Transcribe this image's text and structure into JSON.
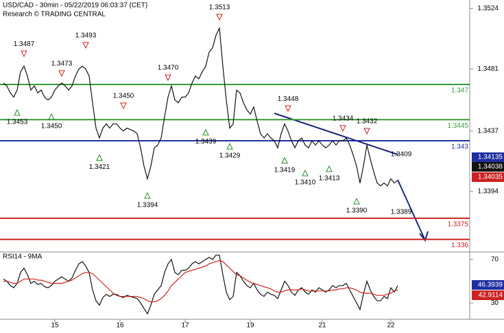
{
  "chart_data": [
    {
      "type": "line",
      "title": "USD/CAD - 30min - 05/22/2019 06:03:37 (CET)",
      "subtitle": "Research © TRADING CENTRAL",
      "xlim": [
        0,
        137
      ],
      "ylim": [
        1.3352,
        1.353
      ],
      "yticks": [
        1.3524,
        1.3481,
        1.3437,
        1.3394
      ],
      "x": [
        1,
        2,
        3,
        4,
        5,
        6,
        7,
        8,
        9,
        10,
        11,
        12,
        13,
        14,
        15,
        16,
        17,
        18,
        19,
        20,
        21,
        22,
        23,
        24,
        25,
        26,
        27,
        28,
        29,
        30,
        31,
        32,
        33,
        34,
        35,
        36,
        37,
        38,
        39,
        40,
        41,
        42,
        43,
        44,
        45,
        46,
        47,
        48,
        49,
        50,
        51,
        52,
        53,
        54,
        55,
        56,
        57,
        58,
        59,
        60,
        61,
        62,
        63,
        64,
        65,
        66,
        67,
        68,
        69,
        70,
        71,
        72,
        73,
        74,
        75,
        76,
        77,
        78,
        79,
        80,
        81,
        82,
        83,
        84,
        85,
        86,
        87,
        88,
        89,
        90,
        91,
        92,
        93,
        94,
        95,
        96,
        97,
        98,
        99,
        100,
        101,
        102,
        103,
        104,
        105,
        106,
        107,
        108,
        109,
        110,
        111,
        112,
        113,
        114,
        115,
        116
      ],
      "series": [
        {
          "name": "USD/CAD",
          "color": "#111111",
          "values": [
            1.3471,
            1.3469,
            1.3464,
            1.3461,
            1.3466,
            1.3479,
            1.3483,
            1.3476,
            1.3466,
            1.3469,
            1.3464,
            1.3466,
            1.3461,
            1.3459,
            1.3461,
            1.3466,
            1.3469,
            1.3471,
            1.3469,
            1.3466,
            1.3469,
            1.3476,
            1.3481,
            1.3483,
            1.3481,
            1.3476,
            1.3457,
            1.3439,
            1.3432,
            1.3439,
            1.3442,
            1.3439,
            1.3442,
            1.3442,
            1.3439,
            1.3437,
            1.3439,
            1.3438,
            1.3437,
            1.3435,
            1.3425,
            1.3412,
            1.3403,
            1.3412,
            1.3425,
            1.3427,
            1.3432,
            1.3447,
            1.3461,
            1.3469,
            1.3459,
            1.3457,
            1.3461,
            1.3461,
            1.3464,
            1.3471,
            1.3476,
            1.3474,
            1.3479,
            1.3483,
            1.3493,
            1.3496,
            1.3505,
            1.351,
            1.3483,
            1.3459,
            1.3439,
            1.3442,
            1.3466,
            1.3464,
            1.3457,
            1.3452,
            1.3449,
            1.3454,
            1.3444,
            1.3435,
            1.3432,
            1.3435,
            1.3432,
            1.343,
            1.3425,
            1.3435,
            1.3442,
            1.3437,
            1.343,
            1.3425,
            1.343,
            1.3432,
            1.3427,
            1.3425,
            1.343,
            1.3427,
            1.343,
            1.3427,
            1.3425,
            1.3427,
            1.343,
            1.3427,
            1.343,
            1.343,
            1.3432,
            1.3427,
            1.342,
            1.3412,
            1.34,
            1.3412,
            1.3427,
            1.3417,
            1.3408,
            1.34,
            1.3398,
            1.34,
            1.3398,
            1.3403,
            1.34,
            1.3402
          ]
        }
      ],
      "levels": [
        {
          "value": 1.347,
          "color": "#3a9a3a"
        },
        {
          "value": 1.3445,
          "color": "#3a9a3a"
        },
        {
          "value": 1.343,
          "color": "#1f2fa0"
        },
        {
          "value": 1.3375,
          "color": "#cc2222"
        },
        {
          "value": 1.336,
          "color": "#cc2222"
        }
      ],
      "highs": [
        {
          "x": 7,
          "value": 1.3487
        },
        {
          "x": 18,
          "value": 1.3473
        },
        {
          "x": 25,
          "value": 1.3493
        },
        {
          "x": 36,
          "value": 1.345,
          "label": "1.3450"
        },
        {
          "x": 49,
          "value": 1.347,
          "label": "1.3470"
        },
        {
          "x": 64,
          "value": 1.3513
        },
        {
          "x": 84,
          "value": 1.3448
        },
        {
          "x": 100,
          "value": 1.3434
        },
        {
          "x": 107,
          "value": 1.3432
        }
      ],
      "lows": [
        {
          "x": 5,
          "value": 1.3453
        },
        {
          "x": 15,
          "value": 1.345,
          "label": "1.3450"
        },
        {
          "x": 29,
          "value": 1.3421
        },
        {
          "x": 43,
          "value": 1.3394
        },
        {
          "x": 60,
          "value": 1.3439
        },
        {
          "x": 67,
          "value": 1.3429
        },
        {
          "x": 83,
          "value": 1.3419
        },
        {
          "x": 89,
          "value": 1.341,
          "label": "1.3410"
        },
        {
          "x": 96,
          "value": 1.3413
        },
        {
          "x": 104,
          "value": 1.339,
          "label": "1.3390"
        }
      ],
      "notes": [
        1.3409,
        1.3389
      ],
      "tags": [
        {
          "value": 1.34135,
          "color": "#1f2fa0"
        },
        {
          "value": 1.34038,
          "color": "#111111"
        },
        {
          "value": 1.34035,
          "color": "#cc2222"
        }
      ]
    },
    {
      "type": "line",
      "title": "RSI14 - 9MA",
      "xlim": [
        0,
        137
      ],
      "ylim": [
        15,
        75
      ],
      "yticks": [
        70,
        30
      ],
      "xticks": [
        {
          "value": 16,
          "label": "15"
        },
        {
          "value": 35,
          "label": "16"
        },
        {
          "value": 54,
          "label": "17"
        },
        {
          "value": 73,
          "label": "19"
        },
        {
          "value": 94,
          "label": "21"
        },
        {
          "value": 114,
          "label": "22"
        }
      ],
      "x": [
        1,
        2,
        3,
        4,
        5,
        6,
        7,
        8,
        9,
        10,
        11,
        12,
        13,
        14,
        15,
        16,
        17,
        18,
        19,
        20,
        21,
        22,
        23,
        24,
        25,
        26,
        27,
        28,
        29,
        30,
        31,
        32,
        33,
        34,
        35,
        36,
        37,
        38,
        39,
        40,
        41,
        42,
        43,
        44,
        45,
        46,
        47,
        48,
        49,
        50,
        51,
        52,
        53,
        54,
        55,
        56,
        57,
        58,
        59,
        60,
        61,
        62,
        63,
        64,
        65,
        66,
        67,
        68,
        69,
        70,
        71,
        72,
        73,
        74,
        75,
        76,
        77,
        78,
        79,
        80,
        81,
        82,
        83,
        84,
        85,
        86,
        87,
        88,
        89,
        90,
        91,
        92,
        93,
        94,
        95,
        96,
        97,
        98,
        99,
        100,
        101,
        102,
        103,
        104,
        105,
        106,
        107,
        108,
        109,
        110,
        111,
        112,
        113,
        114,
        115,
        116
      ],
      "series": [
        {
          "name": "RSI14",
          "color": "#111111",
          "values": [
            52,
            50,
            46,
            44,
            48,
            58,
            62,
            56,
            48,
            50,
            47,
            48,
            45,
            44,
            46,
            50,
            52,
            54,
            52,
            50,
            53,
            60,
            66,
            68,
            64,
            58,
            42,
            32,
            28,
            35,
            38,
            36,
            38,
            38,
            36,
            35,
            37,
            36,
            35,
            34,
            30,
            25,
            20,
            28,
            38,
            42,
            46,
            58,
            66,
            70,
            58,
            56,
            60,
            60,
            62,
            66,
            68,
            66,
            68,
            70,
            72,
            70,
            74,
            74,
            56,
            40,
            33,
            36,
            58,
            55,
            50,
            46,
            44,
            48,
            42,
            38,
            36,
            40,
            38,
            37,
            34,
            42,
            50,
            46,
            40,
            37,
            42,
            44,
            40,
            38,
            42,
            40,
            44,
            42,
            40,
            42,
            46,
            44,
            46,
            46,
            48,
            42,
            36,
            30,
            24,
            38,
            50,
            42,
            36,
            32,
            32,
            36,
            34,
            44,
            40,
            46
          ]
        },
        {
          "name": "9MA",
          "color": "#cc2222",
          "values": [
            50,
            50,
            49,
            48,
            48,
            50,
            52,
            52,
            52,
            52,
            51,
            51,
            50,
            49,
            48,
            48,
            48,
            48,
            49,
            50,
            51,
            53,
            55,
            57,
            58,
            58,
            57,
            54,
            51,
            48,
            45,
            42,
            39,
            37,
            36,
            36,
            36,
            36,
            36,
            36,
            35,
            34,
            32,
            31,
            31,
            32,
            34,
            37,
            41,
            46,
            49,
            52,
            55,
            58,
            59,
            60,
            61,
            62,
            63,
            64,
            66,
            67,
            68,
            69,
            68,
            65,
            62,
            59,
            56,
            55,
            53,
            51,
            49,
            48,
            47,
            46,
            45,
            44,
            43,
            41,
            40,
            40,
            41,
            42,
            42,
            42,
            42,
            43,
            42,
            41,
            41,
            41,
            41,
            41,
            41,
            41,
            42,
            42,
            43,
            43,
            44,
            44,
            43,
            42,
            40,
            39,
            39,
            39,
            38,
            37,
            37,
            37,
            38,
            39,
            41,
            42
          ]
        }
      ],
      "tags": [
        {
          "value": 46.3939,
          "color": "#1f2fa0"
        },
        {
          "value": 42.9114,
          "color": "#cc2222"
        }
      ]
    }
  ]
}
